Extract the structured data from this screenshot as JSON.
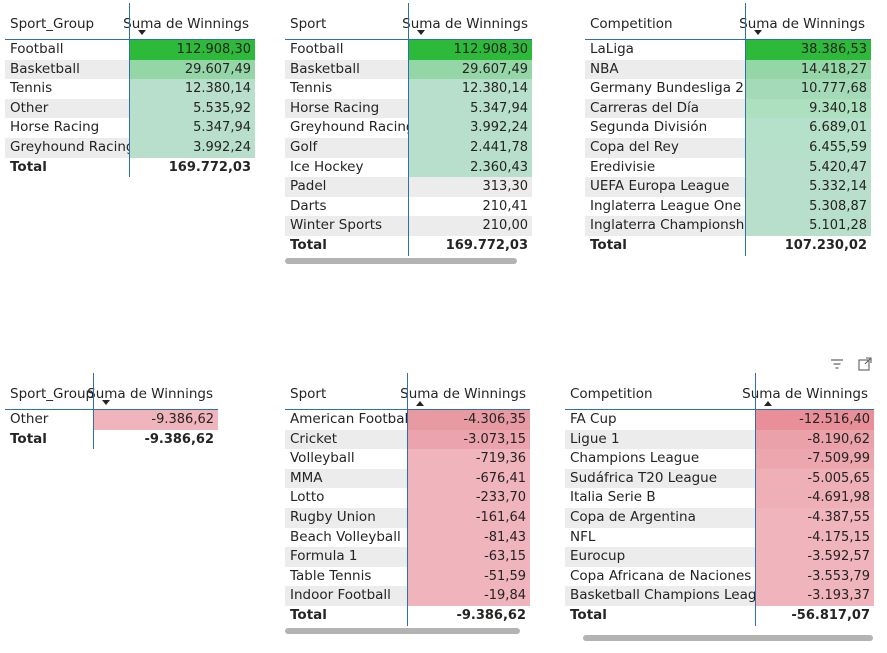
{
  "tables": [
    {
      "col1": "Sport_Group",
      "col2": "Suma de Winnings",
      "sort": "down",
      "rows": [
        {
          "label": "Football",
          "value": "112.908,30",
          "color": "#2db939"
        },
        {
          "label": "Basketball",
          "value": "29.607,49",
          "color": "#95d6a6"
        },
        {
          "label": "Tennis",
          "value": "12.380,14",
          "color": "#b8dfcc"
        },
        {
          "label": "Other",
          "value": "5.535,92",
          "color": "#b8dfcc"
        },
        {
          "label": "Horse Racing",
          "value": "5.347,94",
          "color": "#b8dfcc"
        },
        {
          "label": "Greyhound Racing",
          "value": "3.992,24",
          "color": "#b8dfcc"
        }
      ],
      "total_label": "Total",
      "total_value": "169.772,03"
    },
    {
      "col1": "Sport",
      "col2": "Suma de Winnings",
      "sort": "down",
      "rows": [
        {
          "label": "Football",
          "value": "112.908,30",
          "color": "#2db939"
        },
        {
          "label": "Basketball",
          "value": "29.607,49",
          "color": "#95d6a6"
        },
        {
          "label": "Tennis",
          "value": "12.380,14",
          "color": "#b8dfcc"
        },
        {
          "label": "Horse Racing",
          "value": "5.347,94",
          "color": "#b8dfcc"
        },
        {
          "label": "Greyhound Racing",
          "value": "3.992,24",
          "color": "#b8dfcc"
        },
        {
          "label": "Golf",
          "value": "2.441,78",
          "color": "#b8dfcc"
        },
        {
          "label": "Ice Hockey",
          "value": "2.360,43",
          "color": "#b8dfcc"
        },
        {
          "label": "Padel",
          "value": "313,30",
          "color": ""
        },
        {
          "label": "Darts",
          "value": "210,41",
          "color": ""
        },
        {
          "label": "Winter Sports",
          "value": "210,00",
          "color": ""
        }
      ],
      "total_label": "Total",
      "total_value": "169.772,03"
    },
    {
      "col1": "Competition",
      "col2": "Suma de Winnings",
      "sort": "down",
      "rows": [
        {
          "label": "LaLiga",
          "value": "38.386,53",
          "color": "#2db939"
        },
        {
          "label": "NBA",
          "value": "14.418,27",
          "color": "#95d6a6"
        },
        {
          "label": "Germany Bundesliga 2",
          "value": "10.777,68",
          "color": "#a4dab7"
        },
        {
          "label": "Carreras del Día",
          "value": "9.340,18",
          "color": "#ace0bf"
        },
        {
          "label": "Segunda División",
          "value": "6.689,01",
          "color": "#b5e0c9"
        },
        {
          "label": "Copa del Rey",
          "value": "6.455,59",
          "color": "#b5e0c9"
        },
        {
          "label": "Eredivisie",
          "value": "5.420,47",
          "color": "#b8dfcc"
        },
        {
          "label": "UEFA Europa League",
          "value": "5.332,14",
          "color": "#b8dfcc"
        },
        {
          "label": "Inglaterra League One",
          "value": "5.308,87",
          "color": "#b8dfcc"
        },
        {
          "label": "Inglaterra Championship",
          "value": "5.101,28",
          "color": "#b8dfcc"
        }
      ],
      "total_label": "Total",
      "total_value": "107.230,02"
    },
    {
      "col1": "Sport_Group",
      "col2": "Suma de Winnings",
      "sort": "down",
      "rows": [
        {
          "label": "Other",
          "value": "-9.386,62",
          "color": "#f0b4bc"
        }
      ],
      "total_label": "Total",
      "total_value": "-9.386,62"
    },
    {
      "col1": "Sport",
      "col2": "Suma de Winnings",
      "sort": "up",
      "rows": [
        {
          "label": "American Football",
          "value": "-4.306,35",
          "color": "#e89aa3"
        },
        {
          "label": "Cricket",
          "value": "-3.073,15",
          "color": "#eba4ad"
        },
        {
          "label": "Volleyball",
          "value": "-719,36",
          "color": "#f0b4bc"
        },
        {
          "label": "MMA",
          "value": "-676,41",
          "color": "#f0b4bc"
        },
        {
          "label": "Lotto",
          "value": "-233,70",
          "color": "#f0b4bc"
        },
        {
          "label": "Rugby Union",
          "value": "-161,64",
          "color": "#f0b4bc"
        },
        {
          "label": "Beach Volleyball",
          "value": "-81,43",
          "color": "#f0b4bc"
        },
        {
          "label": "Formula 1",
          "value": "-63,15",
          "color": "#f0b4bc"
        },
        {
          "label": "Table Tennis",
          "value": "-51,59",
          "color": "#f0b4bc"
        },
        {
          "label": "Indoor Football",
          "value": "-19,84",
          "color": "#f0b4bc"
        }
      ],
      "total_label": "Total",
      "total_value": "-9.386,62"
    },
    {
      "col1": "Competition",
      "col2": "Suma de Winnings",
      "sort": "up",
      "rows": [
        {
          "label": "FA Cup",
          "value": "-12.516,40",
          "color": "#e88f99"
        },
        {
          "label": "Ligue 1",
          "value": "-8.190,62",
          "color": "#eba1aa"
        },
        {
          "label": "Champions League",
          "value": "-7.509,99",
          "color": "#eca6ae"
        },
        {
          "label": "Sudáfrica T20 League",
          "value": "-5.005,65",
          "color": "#efafb7"
        },
        {
          "label": "Italia Serie B",
          "value": "-4.691,98",
          "color": "#efafb7"
        },
        {
          "label": "Copa de Argentina",
          "value": "-4.387,55",
          "color": "#f0b4bc"
        },
        {
          "label": "NFL",
          "value": "-4.175,15",
          "color": "#f0b4bc"
        },
        {
          "label": "Eurocup",
          "value": "-3.592,57",
          "color": "#f0b4bc"
        },
        {
          "label": "Copa Africana de Naciones",
          "value": "-3.553,79",
          "color": "#f0b4bc"
        },
        {
          "label": "Basketball Champions League",
          "value": "-3.193,37",
          "color": "#f0b4bc"
        }
      ],
      "total_label": "Total",
      "total_value": "-56.817,07"
    }
  ],
  "icons": [
    "filter-icon",
    "focus-mode-icon"
  ]
}
